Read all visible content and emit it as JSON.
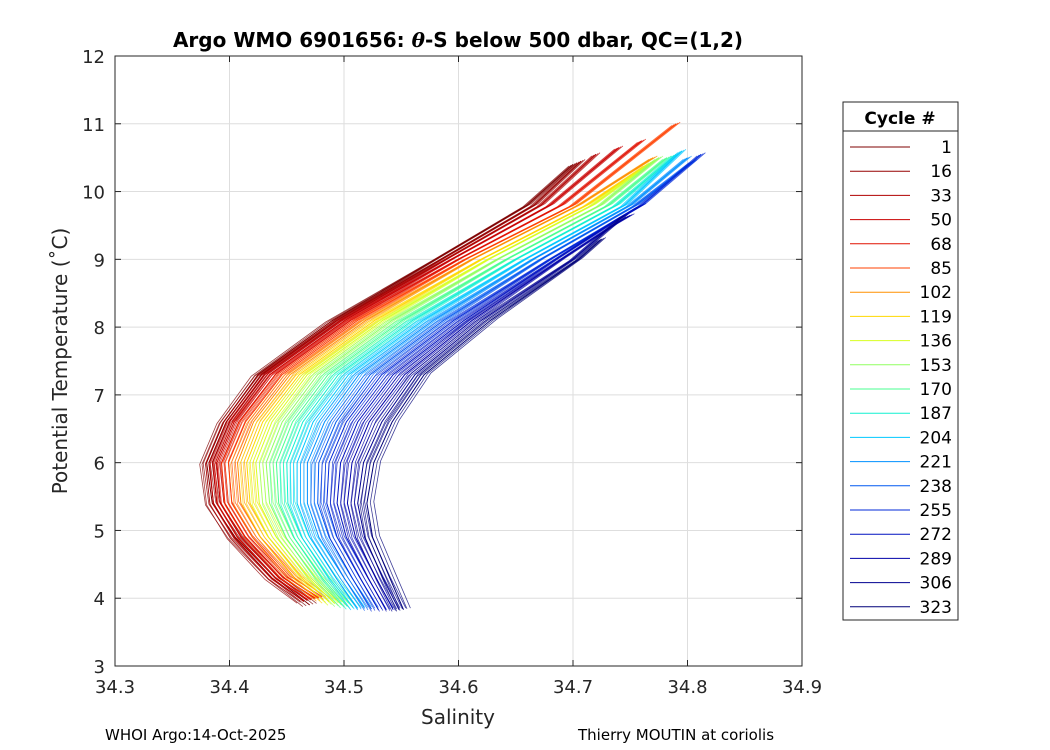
{
  "chart_data": {
    "type": "line",
    "title_prefix": "Argo WMO 6901656: ",
    "title_theta": "θ",
    "title_suffix": "-S below 500 dbar,  QC=(1,2)",
    "xlabel": "Salinity",
    "ylabel": "Potential Temperature (˚C)",
    "xlim": [
      34.3,
      34.9
    ],
    "ylim": [
      3,
      12
    ],
    "xticks": [
      34.3,
      34.4,
      34.5,
      34.6,
      34.7,
      34.8,
      34.9
    ],
    "xtick_labels": [
      "34.3",
      "34.4",
      "34.5",
      "34.6",
      "34.7",
      "34.8",
      "34.9"
    ],
    "yticks": [
      3,
      4,
      5,
      6,
      7,
      8,
      9,
      10,
      11,
      12
    ],
    "ytick_labels": [
      "3",
      "4",
      "5",
      "6",
      "7",
      "8",
      "9",
      "10",
      "11",
      "12"
    ],
    "grid": true,
    "legend_title": "Cycle #",
    "legend_position": "outside-right",
    "series": [
      {
        "name": "1",
        "color": "#7f0000",
        "salinity": [
          34.47,
          34.44,
          34.405,
          34.385,
          34.38,
          34.395,
          34.425,
          34.49,
          34.58,
          34.66,
          34.7
        ],
        "theta": [
          3.9,
          4.3,
          4.9,
          5.4,
          6.0,
          6.6,
          7.3,
          8.1,
          9.0,
          9.8,
          10.4
        ]
      },
      {
        "name": "16",
        "color": "#960000",
        "salinity": [
          34.465,
          34.437,
          34.404,
          34.386,
          34.382,
          34.397,
          34.428,
          34.494,
          34.585,
          34.666,
          34.707
        ],
        "theta": [
          3.95,
          4.3,
          4.9,
          5.4,
          6.0,
          6.6,
          7.3,
          8.1,
          9.0,
          9.8,
          10.45
        ]
      },
      {
        "name": "33",
        "color": "#b00000",
        "salinity": [
          34.468,
          34.44,
          34.407,
          34.389,
          34.385,
          34.4,
          34.431,
          34.497,
          34.589,
          34.672,
          34.72
        ],
        "theta": [
          3.98,
          4.3,
          4.9,
          5.4,
          6.0,
          6.6,
          7.3,
          8.1,
          9.0,
          9.8,
          10.55
        ]
      },
      {
        "name": "50",
        "color": "#c80000",
        "salinity": [
          34.471,
          34.443,
          34.41,
          34.392,
          34.389,
          34.404,
          34.435,
          34.501,
          34.594,
          34.68,
          34.74
        ],
        "theta": [
          3.98,
          4.3,
          4.9,
          5.4,
          6.0,
          6.6,
          7.3,
          8.1,
          9.0,
          9.8,
          10.65
        ]
      },
      {
        "name": "68",
        "color": "#e01000",
        "salinity": [
          34.475,
          34.447,
          34.414,
          34.396,
          34.393,
          34.408,
          34.44,
          34.506,
          34.6,
          34.69,
          34.76
        ],
        "theta": [
          4.0,
          4.3,
          4.9,
          5.4,
          6.0,
          6.6,
          7.3,
          8.1,
          9.0,
          9.8,
          10.75
        ]
      },
      {
        "name": "85",
        "color": "#ff4000",
        "salinity": [
          34.478,
          34.452,
          34.42,
          34.402,
          34.399,
          34.414,
          34.446,
          34.512,
          34.606,
          34.7,
          34.79
        ],
        "theta": [
          4.0,
          4.3,
          4.9,
          5.4,
          6.0,
          6.6,
          7.3,
          8.1,
          9.0,
          9.8,
          11.0
        ]
      },
      {
        "name": "102",
        "color": "#ff9000",
        "salinity": [
          34.482,
          34.457,
          34.427,
          34.41,
          34.407,
          34.421,
          34.453,
          34.519,
          34.612,
          34.705,
          34.77
        ],
        "theta": [
          3.98,
          4.3,
          4.9,
          5.4,
          6.0,
          6.6,
          7.3,
          8.1,
          9.0,
          9.8,
          10.5
        ]
      },
      {
        "name": "119",
        "color": "#ffd800",
        "salinity": [
          34.487,
          34.463,
          34.434,
          34.418,
          34.415,
          34.429,
          34.461,
          34.527,
          34.62,
          34.712,
          34.765
        ],
        "theta": [
          3.95,
          4.3,
          4.9,
          5.4,
          6.0,
          6.6,
          7.3,
          8.1,
          9.0,
          9.8,
          10.4
        ]
      },
      {
        "name": "136",
        "color": "#d8ff20",
        "salinity": [
          34.492,
          34.469,
          34.441,
          34.426,
          34.423,
          34.437,
          34.468,
          34.534,
          34.626,
          34.717,
          34.77
        ],
        "theta": [
          3.92,
          4.3,
          4.9,
          5.4,
          6.0,
          6.6,
          7.3,
          8.1,
          9.0,
          9.8,
          10.45
        ]
      },
      {
        "name": "153",
        "color": "#90ff60",
        "salinity": [
          34.498,
          34.475,
          34.449,
          34.435,
          34.432,
          34.446,
          34.477,
          34.542,
          34.634,
          34.724,
          34.775
        ],
        "theta": [
          3.9,
          4.3,
          4.9,
          5.4,
          6.0,
          6.6,
          7.3,
          8.1,
          9.0,
          9.8,
          10.5
        ]
      },
      {
        "name": "170",
        "color": "#48ff90",
        "salinity": [
          34.503,
          34.481,
          34.456,
          34.443,
          34.441,
          34.455,
          34.486,
          34.551,
          34.642,
          34.731,
          34.782
        ],
        "theta": [
          3.88,
          4.3,
          4.9,
          5.4,
          6.0,
          6.6,
          7.3,
          8.1,
          9.0,
          9.8,
          10.5
        ]
      },
      {
        "name": "187",
        "color": "#10f0d0",
        "salinity": [
          34.508,
          34.487,
          34.463,
          34.451,
          34.45,
          34.464,
          34.495,
          34.56,
          34.65,
          34.738,
          34.79
        ],
        "theta": [
          3.86,
          4.3,
          4.9,
          5.4,
          6.0,
          6.6,
          7.3,
          8.1,
          9.0,
          9.8,
          10.55
        ]
      },
      {
        "name": "204",
        "color": "#00c8ff",
        "salinity": [
          34.512,
          34.493,
          34.47,
          34.459,
          34.459,
          34.473,
          34.504,
          34.569,
          34.658,
          34.745,
          34.795
        ],
        "theta": [
          3.85,
          4.3,
          4.9,
          5.4,
          6.0,
          6.6,
          7.3,
          8.1,
          9.0,
          9.8,
          10.6
        ]
      },
      {
        "name": "221",
        "color": "#0090ff",
        "salinity": [
          34.518,
          34.5,
          34.478,
          34.468,
          34.468,
          34.483,
          34.513,
          34.578,
          34.665,
          34.75,
          34.8
        ],
        "theta": [
          3.85,
          4.3,
          4.9,
          5.4,
          6.0,
          6.6,
          7.3,
          8.1,
          9.0,
          9.8,
          10.5
        ]
      },
      {
        "name": "238",
        "color": "#0058f0",
        "salinity": [
          34.524,
          34.507,
          34.487,
          34.477,
          34.478,
          34.493,
          34.523,
          34.587,
          34.672,
          34.755,
          34.805
        ],
        "theta": [
          3.84,
          4.3,
          4.9,
          5.4,
          6.0,
          6.6,
          7.3,
          8.1,
          9.0,
          9.8,
          10.45
        ]
      },
      {
        "name": "255",
        "color": "#0028d8",
        "salinity": [
          34.53,
          34.514,
          34.494,
          34.485,
          34.487,
          34.502,
          34.533,
          34.596,
          34.68,
          34.76,
          34.812
        ],
        "theta": [
          3.83,
          4.3,
          4.9,
          5.4,
          6.0,
          6.6,
          7.3,
          8.1,
          9.0,
          9.8,
          10.55
        ]
      },
      {
        "name": "272",
        "color": "#0010c0",
        "salinity": [
          34.537,
          34.521,
          34.502,
          34.494,
          34.497,
          34.512,
          34.543,
          34.605,
          34.685,
          34.74,
          34.76
        ],
        "theta": [
          3.83,
          4.3,
          4.9,
          5.4,
          6.0,
          6.6,
          7.3,
          8.1,
          9.0,
          9.6,
          9.8
        ]
      },
      {
        "name": "289",
        "color": "#0000a8",
        "salinity": [
          34.543,
          34.528,
          34.51,
          34.503,
          34.507,
          34.522,
          34.553,
          34.612,
          34.69,
          34.735,
          34.75
        ],
        "theta": [
          3.83,
          4.3,
          4.9,
          5.4,
          6.0,
          6.6,
          7.3,
          8.1,
          9.0,
          9.5,
          9.65
        ]
      },
      {
        "name": "306",
        "color": "#000090",
        "salinity": [
          34.548,
          34.534,
          34.518,
          34.512,
          34.517,
          34.533,
          34.562,
          34.62,
          34.7,
          34.745
        ],
        "theta": [
          3.83,
          4.3,
          4.9,
          5.4,
          6.0,
          6.6,
          7.3,
          8.1,
          9.0,
          9.65
        ]
      },
      {
        "name": "323",
        "color": "#000078",
        "salinity": [
          34.552,
          34.54,
          34.525,
          34.52,
          34.526,
          34.542,
          34.57,
          34.628,
          34.705,
          34.725
        ],
        "theta": [
          3.83,
          4.3,
          4.9,
          5.4,
          6.0,
          6.6,
          7.3,
          8.1,
          9.0,
          9.3
        ]
      }
    ]
  },
  "footer": {
    "left": "WHOI Argo:14-Oct-2025",
    "right": "Thierry MOUTIN at coriolis"
  }
}
